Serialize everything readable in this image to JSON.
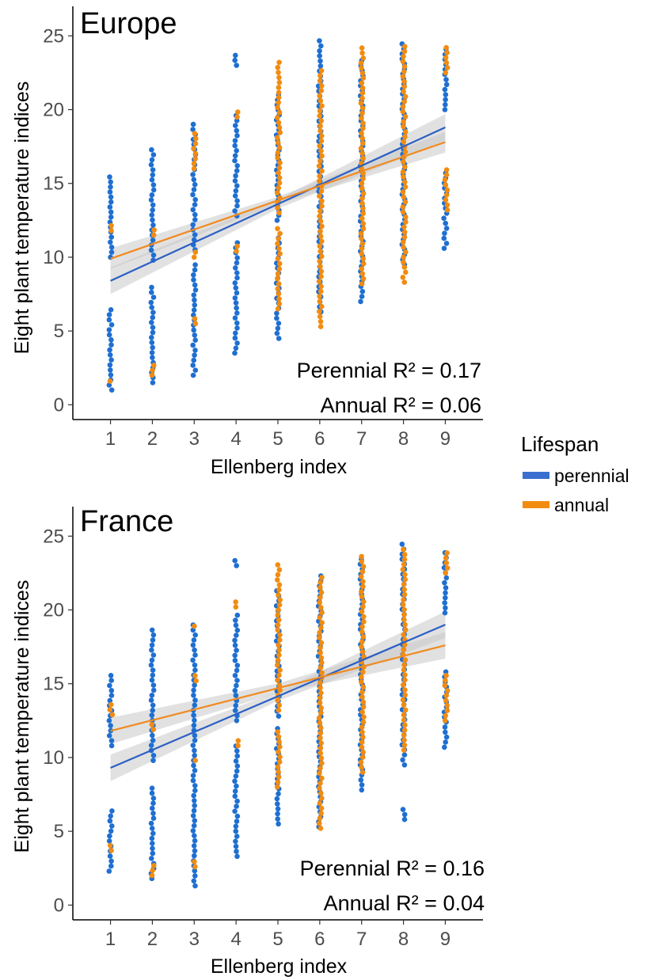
{
  "colors": {
    "perennial": "#1f6fd1",
    "annual": "#f28c10",
    "band": "#c8c8c8",
    "perennial_line": "#2a5fc4",
    "annual_line": "#f08a20"
  },
  "legend": {
    "title": "Lifespan",
    "items": [
      {
        "label": "perennial",
        "color": "#3a6fd0"
      },
      {
        "label": "annual",
        "color": "#f28c10"
      }
    ]
  },
  "chart_data": [
    {
      "type": "scatter",
      "title": "Europe",
      "xlabel": "Ellenberg index",
      "ylabel": "Eight plant temperature indices",
      "x_ticks": [
        1,
        2,
        3,
        4,
        5,
        6,
        7,
        8,
        9
      ],
      "y_ticks": [
        0,
        5,
        10,
        15,
        20,
        25
      ],
      "xlim": [
        0.1,
        9.9
      ],
      "ylim": [
        -1,
        27
      ],
      "grid": false,
      "annotations": [
        "Perennial R² = 0.17",
        "Annual R² = 0.06"
      ],
      "series": [
        {
          "name": "perennial",
          "segments": [
            {
              "x": 1,
              "ranges": [
                [
                  1.0,
                  6.5
                ],
                [
                  10.0,
                  15.6
                ]
              ]
            },
            {
              "x": 2,
              "ranges": [
                [
                  1.5,
                  8.2
                ],
                [
                  9.8,
                  17.4
                ]
              ]
            },
            {
              "x": 3,
              "ranges": [
                [
                  2.0,
                  9.5
                ],
                [
                  10.5,
                  19.2
                ]
              ]
            },
            {
              "x": 4,
              "ranges": [
                [
                  3.5,
                  11.0
                ],
                [
                  12.8,
                  19.7
                ],
                [
                  23.0,
                  23.7
                ]
              ]
            },
            {
              "x": 5,
              "ranges": [
                [
                  4.5,
                  11.5
                ],
                [
                  12.5,
                  21.2
                ]
              ]
            },
            {
              "x": 6,
              "ranges": [
                [
                  6.3,
                  24.8
                ]
              ]
            },
            {
              "x": 7,
              "ranges": [
                [
                  7.0,
                  23.6
                ]
              ]
            },
            {
              "x": 8,
              "ranges": [
                [
                  9.5,
                  24.7
                ]
              ]
            },
            {
              "x": 9,
              "ranges": [
                [
                  10.6,
                  16.0
                ],
                [
                  20.0,
                  24.2
                ]
              ]
            }
          ],
          "fit": {
            "x": [
              1,
              9
            ],
            "y": [
              8.4,
              18.8
            ]
          },
          "band_halfwidth": 0.9
        },
        {
          "name": "annual",
          "segments": [
            {
              "x": 1,
              "ranges": [
                [
                  1.6,
                  1.9
                ],
                [
                  11.8,
                  12.2
                ]
              ]
            },
            {
              "x": 2,
              "ranges": [
                [
                  2.0,
                  3.0
                ],
                [
                  11.5,
                  12.0
                ]
              ]
            },
            {
              "x": 3,
              "ranges": [
                [
                  5.5,
                  6.0
                ],
                [
                  10.0,
                  10.4
                ],
                [
                  16.0,
                  18.6
                ]
              ]
            },
            {
              "x": 4,
              "ranges": [
                [
                  10.4,
                  10.8
                ],
                [
                  19.5,
                  19.9
                ]
              ]
            },
            {
              "x": 5,
              "ranges": [
                [
                  6.5,
                  12.0
                ],
                [
                  13.0,
                  23.2
                ]
              ]
            },
            {
              "x": 6,
              "ranges": [
                [
                  5.3,
                  22.9
                ]
              ]
            },
            {
              "x": 7,
              "ranges": [
                [
                  8.2,
                  24.5
                ]
              ]
            },
            {
              "x": 8,
              "ranges": [
                [
                  8.3,
                  24.3
                ]
              ]
            },
            {
              "x": 9,
              "ranges": [
                [
                  13.2,
                  16.0
                ],
                [
                  22.5,
                  24.5
                ]
              ]
            }
          ],
          "fit": {
            "x": [
              1,
              9
            ],
            "y": [
              9.9,
              17.8
            ]
          },
          "band_halfwidth": 0.7
        }
      ]
    },
    {
      "type": "scatter",
      "title": "France",
      "xlabel": "Ellenberg index",
      "ylabel": "Eight plant temperature indices",
      "x_ticks": [
        1,
        2,
        3,
        4,
        5,
        6,
        7,
        8,
        9
      ],
      "y_ticks": [
        0,
        5,
        10,
        15,
        20,
        25
      ],
      "xlim": [
        0.1,
        9.9
      ],
      "ylim": [
        -1,
        27
      ],
      "grid": false,
      "annotations": [
        "Perennial R² = 0.16",
        "Annual R² = 0.04"
      ],
      "series": [
        {
          "name": "perennial",
          "segments": [
            {
              "x": 1,
              "ranges": [
                [
                  2.3,
                  6.4
                ],
                [
                  10.8,
                  15.6
                ]
              ]
            },
            {
              "x": 2,
              "ranges": [
                [
                  1.8,
                  8.2
                ],
                [
                  9.8,
                  18.8
                ]
              ]
            },
            {
              "x": 3,
              "ranges": [
                [
                  1.3,
                  19.2
                ]
              ]
            },
            {
              "x": 4,
              "ranges": [
                [
                  3.3,
                  11.0
                ],
                [
                  12.5,
                  19.8
                ],
                [
                  23.0,
                  23.6
                ]
              ]
            },
            {
              "x": 5,
              "ranges": [
                [
                  5.5,
                  12.0
                ],
                [
                  12.8,
                  21.5
                ]
              ]
            },
            {
              "x": 6,
              "ranges": [
                [
                  5.3,
                  22.6
                ]
              ]
            },
            {
              "x": 7,
              "ranges": [
                [
                  7.8,
                  23.6
                ]
              ]
            },
            {
              "x": 8,
              "ranges": [
                [
                  5.8,
                  6.8
                ],
                [
                  9.5,
                  24.7
                ]
              ]
            },
            {
              "x": 9,
              "ranges": [
                [
                  10.7,
                  15.8
                ],
                [
                  19.8,
                  24.0
                ]
              ]
            }
          ],
          "fit": {
            "x": [
              1,
              9
            ],
            "y": [
              9.3,
              19.0
            ]
          },
          "band_halfwidth": 0.9
        },
        {
          "name": "annual",
          "segments": [
            {
              "x": 1,
              "ranges": [
                [
                  3.7,
                  4.2
                ],
                [
                  12.9,
                  13.6
                ]
              ]
            },
            {
              "x": 2,
              "ranges": [
                [
                  2.0,
                  2.9
                ],
                [
                  11.9,
                  12.4
                ]
              ]
            },
            {
              "x": 3,
              "ranges": [
                [
                  2.6,
                  3.0
                ],
                [
                  9.8,
                  10.1
                ],
                [
                  15.2,
                  15.6
                ],
                [
                  18.9,
                  19.1
                ]
              ]
            },
            {
              "x": 4,
              "ranges": [
                [
                  10.8,
                  11.2
                ],
                [
                  20.2,
                  20.6
                ]
              ]
            },
            {
              "x": 5,
              "ranges": [
                [
                  8.0,
                  12.0
                ],
                [
                  13.2,
                  23.2
                ]
              ]
            },
            {
              "x": 6,
              "ranges": [
                [
                  5.2,
                  22.2
                ]
              ]
            },
            {
              "x": 7,
              "ranges": [
                [
                  9.0,
                  23.8
                ]
              ]
            },
            {
              "x": 8,
              "ranges": [
                [
                  10.5,
                  24.4
                ]
              ]
            },
            {
              "x": 9,
              "ranges": [
                [
                  12.5,
                  15.8
                ],
                [
                  22.5,
                  24.0
                ]
              ]
            }
          ],
          "fit": {
            "x": [
              1,
              9
            ],
            "y": [
              11.8,
              17.6
            ]
          },
          "band_halfwidth": 0.9
        }
      ]
    }
  ]
}
